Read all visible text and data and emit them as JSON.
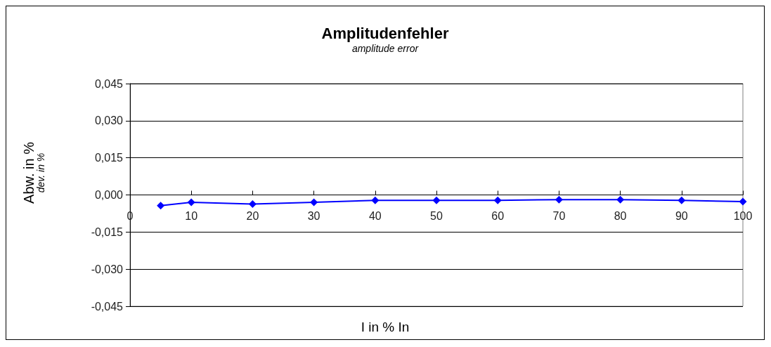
{
  "chart_data": {
    "type": "line",
    "title": "Amplitudenfehler",
    "subtitle": "amplitude error",
    "xlabel": "I in % In",
    "ylabel": "Abw. in %\ndev. in %",
    "x": [
      5,
      10,
      20,
      30,
      40,
      50,
      60,
      70,
      80,
      90,
      100
    ],
    "series": [
      {
        "color": "#0000ff",
        "values": [
          -0.0043,
          -0.003,
          -0.0037,
          -0.003,
          -0.0022,
          -0.0022,
          -0.0022,
          -0.0019,
          -0.0019,
          -0.0022,
          -0.0027
        ]
      }
    ],
    "xlim": [
      0,
      100
    ],
    "xticks": [
      0,
      10,
      20,
      30,
      40,
      50,
      60,
      70,
      80,
      90,
      100
    ],
    "ylim": [
      -0.045,
      0.045
    ],
    "yticks": [
      {
        "value": -0.045,
        "label": "-0,045"
      },
      {
        "value": -0.03,
        "label": "-0,030"
      },
      {
        "value": -0.015,
        "label": "-0,015"
      },
      {
        "value": 0,
        "label": "0,000"
      },
      {
        "value": 0.015,
        "label": "0,015"
      },
      {
        "value": 0.03,
        "label": "0,030"
      },
      {
        "value": 0.045,
        "label": "0,045"
      }
    ],
    "grid": "y",
    "marker": "diamond",
    "line_style": "solid"
  }
}
